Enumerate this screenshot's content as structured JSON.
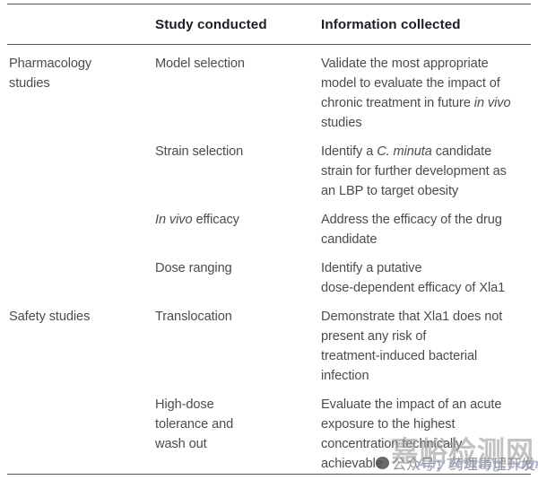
{
  "colors": {
    "rule": "#57585c",
    "header_text": "#1c1e23",
    "body_text": "#4a4c4f",
    "watermark_big": "#9d9d9d",
    "watermark_account": "#7f7f7f",
    "watermark_site": "#a0aac6"
  },
  "table": {
    "header": {
      "group": "",
      "study": "Study conducted",
      "info": "Information collected"
    },
    "rows": [
      {
        "group": [
          {
            "t": "Pharmacology"
          },
          {
            "br": true
          },
          {
            "t": "studies"
          }
        ],
        "study": [
          {
            "t": "Model selection"
          }
        ],
        "info": [
          {
            "t": "Validate the most appropriate"
          },
          {
            "br": true
          },
          {
            "t": "model to evaluate the impact of"
          },
          {
            "br": true
          },
          {
            "t": "chronic treatment in future "
          },
          {
            "t": "in vivo",
            "i": true
          },
          {
            "br": true
          },
          {
            "t": "studies"
          }
        ]
      },
      {
        "group": [],
        "study": [
          {
            "t": "Strain selection"
          }
        ],
        "info": [
          {
            "t": "Identify a "
          },
          {
            "t": "C. minuta",
            "i": true
          },
          {
            "t": " candidate"
          },
          {
            "br": true
          },
          {
            "t": "strain for further development as"
          },
          {
            "br": true
          },
          {
            "t": "an LBP to target obesity"
          }
        ]
      },
      {
        "group": [],
        "study": [
          {
            "t": "In vivo",
            "i": true
          },
          {
            "t": " efficacy"
          }
        ],
        "info": [
          {
            "t": "Address the efficacy of the drug"
          },
          {
            "br": true
          },
          {
            "t": "candidate"
          }
        ]
      },
      {
        "group": [],
        "study": [
          {
            "t": "Dose ranging"
          }
        ],
        "info": [
          {
            "t": "Identify a putative"
          },
          {
            "br": true
          },
          {
            "t": "dose-dependent efficacy of Xla1"
          }
        ]
      },
      {
        "group": [
          {
            "t": "Safety studies"
          }
        ],
        "study": [
          {
            "t": "Translocation"
          }
        ],
        "info": [
          {
            "t": "Demonstrate that Xla1 does not"
          },
          {
            "br": true
          },
          {
            "t": "present any risk of"
          },
          {
            "br": true
          },
          {
            "t": "treatment-induced bacterial"
          },
          {
            "br": true
          },
          {
            "t": "infection"
          }
        ]
      },
      {
        "group": [],
        "study": [
          {
            "t": "High-dose"
          },
          {
            "br": true
          },
          {
            "t": "tolerance and"
          },
          {
            "br": true
          },
          {
            "t": "wash out"
          }
        ],
        "info": [
          {
            "t": "Evaluate the impact of an acute"
          },
          {
            "br": true
          },
          {
            "t": "exposure to the highest"
          },
          {
            "br": true
          },
          {
            "t": "concentration technically"
          },
          {
            "br": true
          },
          {
            "t": "achievable"
          }
        ]
      }
    ]
  },
  "watermark": {
    "big_text": "嘉峪检测网",
    "account_text": "公众号：药理毒理开发",
    "site_text": "AnyTesting.com",
    "icon": "speech-bubble-icon"
  }
}
